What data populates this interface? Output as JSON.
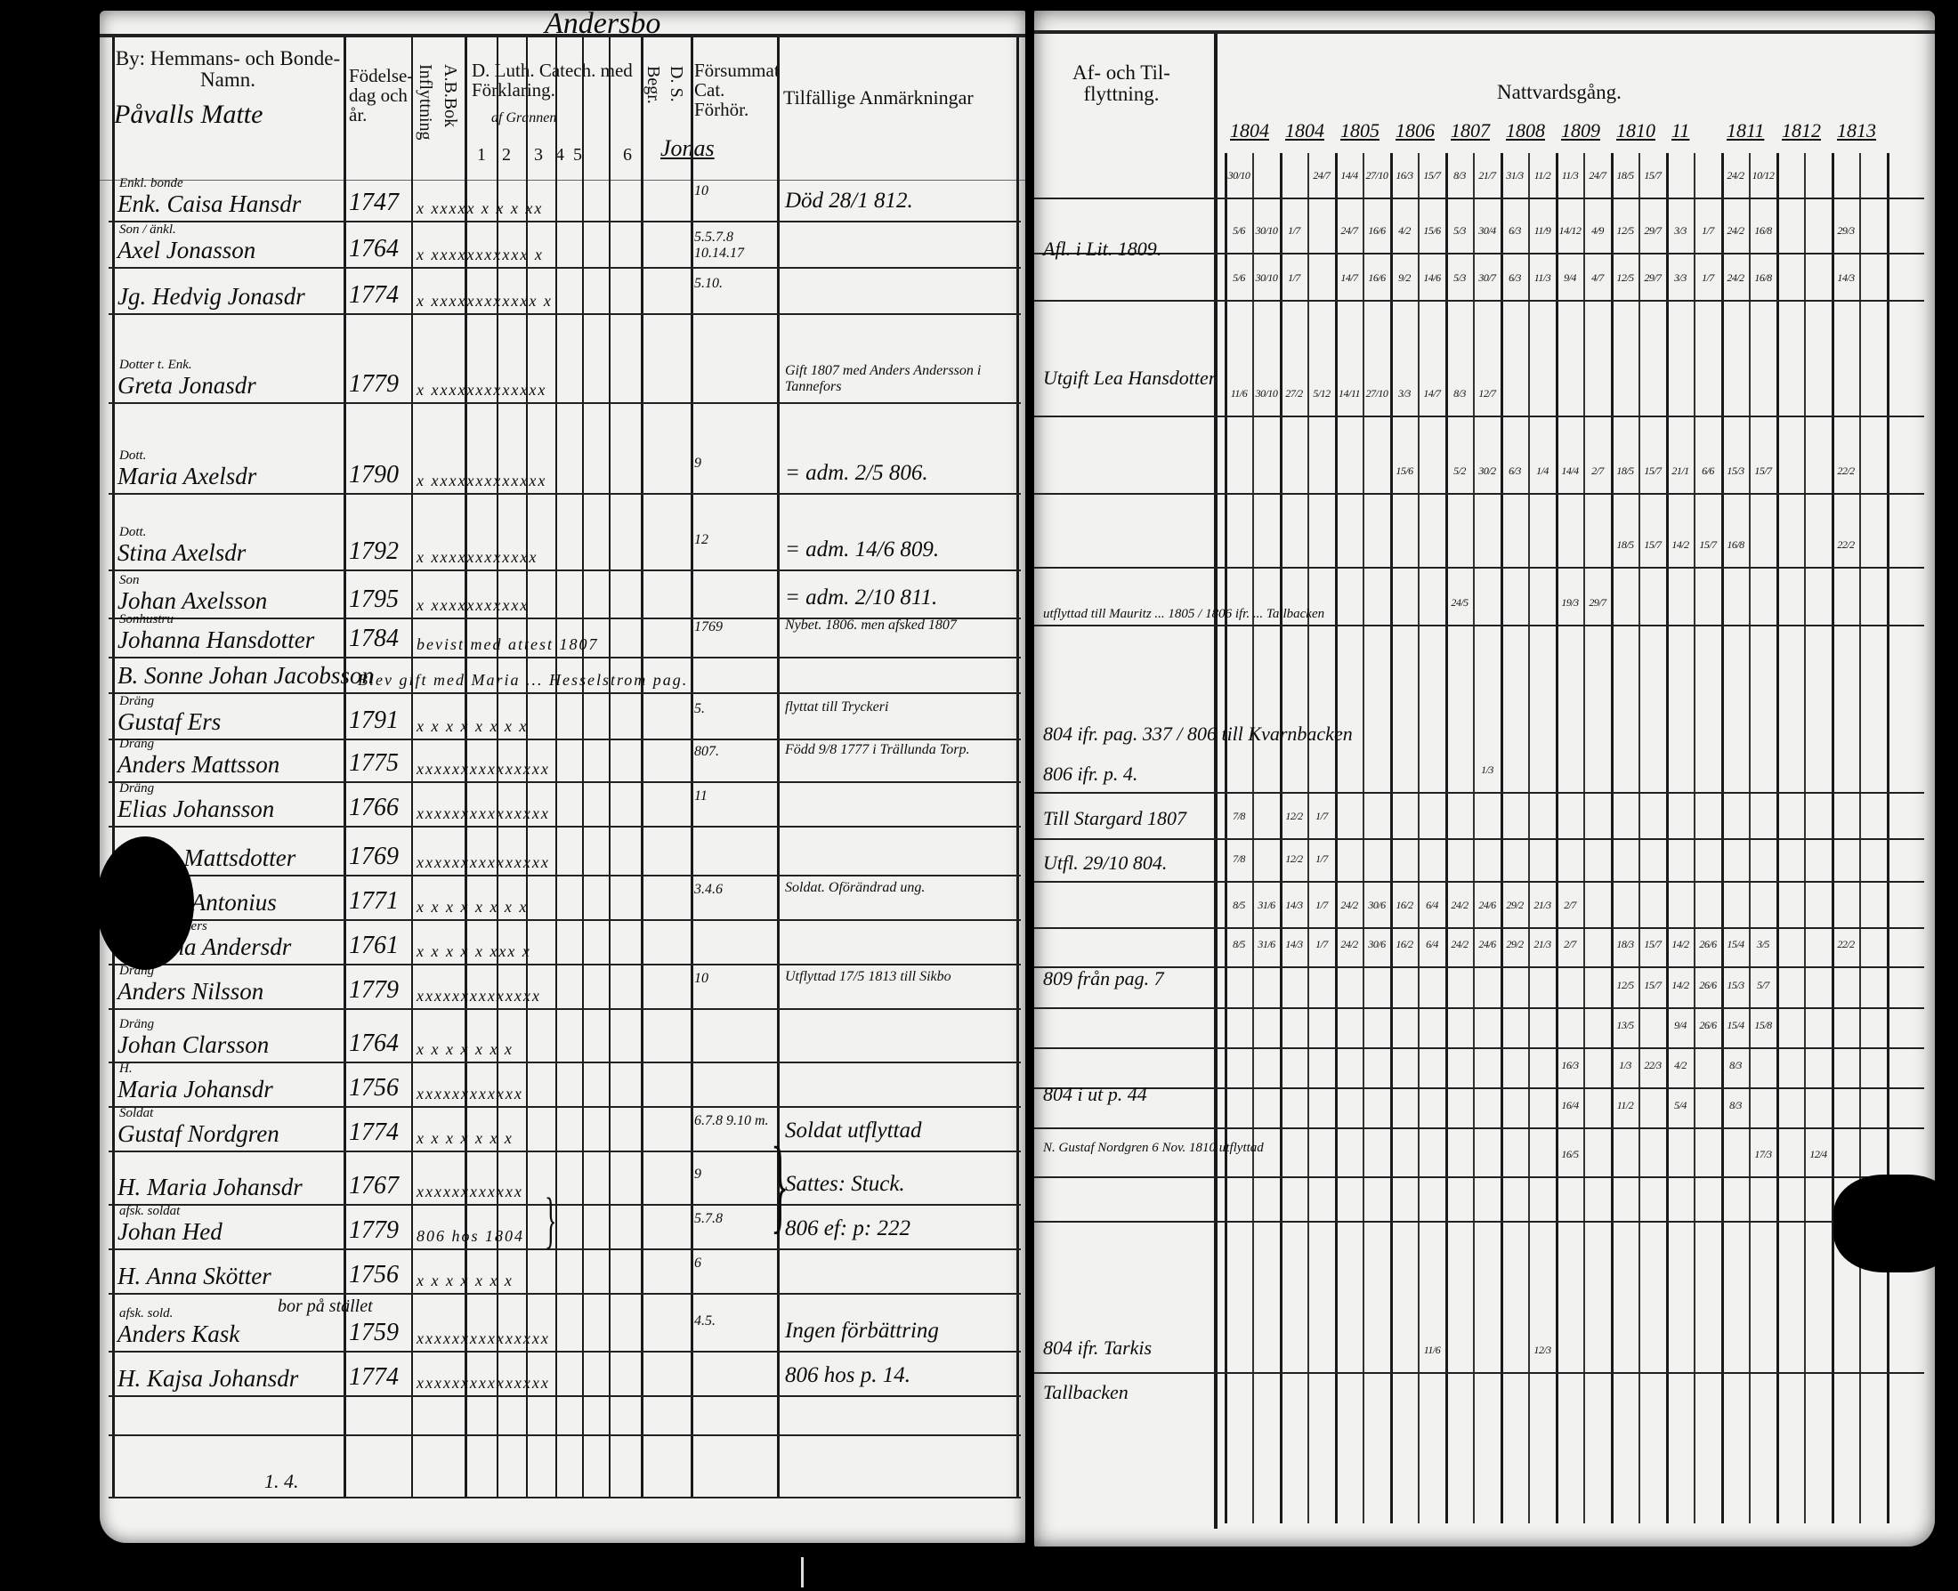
{
  "left_page": {
    "top_handwriting": "Andersbo",
    "headers": {
      "name": "By: Hemmans- och Bonde-Namn.",
      "name_handwritten": "Påvalls Matte",
      "birth": "Födelse-dag och år.",
      "inflyttning": "Inflyttning",
      "ab_bok": "A.B.Bok",
      "catechism": "D. Luth. Catech. med Förklaring.",
      "catechism_hand": "af Grannen",
      "catechism_numbers": [
        "1",
        "2",
        "3",
        "4",
        "5",
        "6"
      ],
      "begr": "Begr.",
      "ds": "D. S.",
      "forsummat": "Försummat Cat. Förhör.",
      "forsummat_hand": "Jonas",
      "remarks": "Tilfällige Anmärkningar"
    },
    "rows": [
      {
        "role": "Enkl. bonde",
        "name": "Enk. Caisa Hansdr",
        "year": "1747",
        "marks": "x xxxxx x x x xx",
        "forsummat": "10",
        "remark": "Död 28/1 812."
      },
      {
        "role": "Son / änkl.",
        "name": "Axel Jonasson",
        "year": "1764",
        "marks": "x xxxxxxxxxxx x",
        "forsummat": "5.5.7.8 10.14.17",
        "remark": ""
      },
      {
        "role": "",
        "name": "Jg. Hedvig Jonasdr",
        "year": "1774",
        "marks": "x xxxxxxxxxxxx x",
        "forsummat": "5.10.",
        "remark": ""
      },
      {
        "role": "Dotter t. Enk.",
        "name": "Greta Jonasdr",
        "year": "1779",
        "marks": "x xxxxxxxxxxxxx",
        "forsummat": "",
        "remark": "Gift 1807 med Anders Andersson i Tannefors"
      },
      {
        "role": "Dott.",
        "name": "Maria Axelsdr",
        "year": "1790",
        "marks": "x xxxxxxxxxxxxx",
        "forsummat": "9",
        "remark": "= adm. 2/5 806."
      },
      {
        "role": "Dott.",
        "name": "Stina Axelsdr",
        "year": "1792",
        "marks": "x xxxxxxxxxxxx",
        "forsummat": "12",
        "remark": "= adm. 14/6 809."
      },
      {
        "role": "Son",
        "name": "Johan Axelsson",
        "year": "1795",
        "marks": "x xxxxxxxxxxx",
        "forsummat": "",
        "remark": "= adm. 2/10 811."
      },
      {
        "role": "Sonhustru",
        "name": "Johanna Hansdotter",
        "year": "1784",
        "marks": "bevist med attest 1807",
        "forsummat": "1769",
        "remark": "Nybet. 1806. men afsked 1807"
      },
      {
        "role": "",
        "name": "B. Sonne Johan Jacobsson",
        "year": "",
        "marks": "Blev gift med Maria ... Hesselstrom pag.",
        "forsummat": "",
        "remark": ""
      },
      {
        "role": "Dräng",
        "name": "Gustaf Ers",
        "year": "1791",
        "marks": "x x x x x x x x",
        "forsummat": "5.",
        "remark": "flyttat till Tryckeri"
      },
      {
        "role": "Dräng",
        "name": "Anders Mattsson",
        "year": "1775",
        "marks": "xxxxxxxxxxxxxxx",
        "forsummat": "807.",
        "remark": "Född 9/8 1777 i Trällunda Torp."
      },
      {
        "role": "Dräng",
        "name": "Elias Johansson",
        "year": "1766",
        "marks": "xxxxxxxxxxxxxxx",
        "forsummat": "11",
        "remark": ""
      },
      {
        "role": "",
        "name": "Maria Mattsdotter",
        "year": "1769",
        "marks": "xxxxxxxxxxxxxxx",
        "forsummat": "",
        "remark": ""
      },
      {
        "role": "Dräng",
        "name": "Anders Antonius",
        "year": "1771",
        "marks": "x x x x x x x x",
        "forsummat": "3.4.6",
        "remark": "Soldat. Oförändrad ung."
      },
      {
        "role": "Piga hos Anders",
        "name": "H. Stina Andersdr",
        "year": "1761",
        "marks": "x x x x x xxx x",
        "forsummat": "",
        "remark": ""
      },
      {
        "role": "Dräng",
        "name": "Anders Nilsson",
        "year": "1779",
        "marks": "xxxxxxxxxxxxxx",
        "forsummat": "10",
        "remark": "Utflyttad 17/5 1813 till Sikbo"
      },
      {
        "role": "Dräng",
        "name": "Johan Clarsson",
        "year": "1764",
        "marks": "x x x x x x x",
        "forsummat": "",
        "remark": ""
      },
      {
        "role": "H.",
        "name": "Maria Johansdr",
        "year": "1756",
        "marks": "xxxxxxxxxxxx",
        "forsummat": "",
        "remark": ""
      },
      {
        "role": "Soldat",
        "name": "Gustaf Nordgren",
        "year": "1774",
        "marks": "x x x x x x x",
        "forsummat": "6.7.8 9.10 m.",
        "remark": "Soldat utflyttad"
      },
      {
        "role": "",
        "name": "H. Maria Johansdr",
        "year": "1767",
        "marks": "xxxxxxxxxxxx",
        "forsummat": "9",
        "remark": "Sattes: Stuck."
      },
      {
        "role": "afsk. soldat",
        "name": "Johan Hed",
        "year": "1779",
        "marks": "806 hos 1804",
        "forsummat": "5.7.8",
        "remark": "806 ef: p: 222"
      },
      {
        "role": "",
        "name": "H. Anna Skötter",
        "year": "1756",
        "marks": "x x x x x x x",
        "forsummat": "6",
        "remark": ""
      },
      {
        "role": "afsk. sold.",
        "name": "Anders Kask",
        "year": "1759",
        "marks": "xxxxxxxxxxxxxxx",
        "forsummat": "4.5.",
        "remark": "Ingen förbättring"
      },
      {
        "role": "",
        "name": "H. Kajsa Johansdr",
        "year": "1774",
        "marks": "xxxxxxxxxxxxxxx",
        "forsummat": "",
        "remark": "806 hos p. 14."
      }
    ],
    "bracket_note": "bor på stället",
    "bottom_note": "1. 4."
  },
  "right_page": {
    "headers": {
      "moving": "Af- och Til-flyttning.",
      "communion": "Nattvardsgång.",
      "years": [
        "1804",
        "1804",
        "1805",
        "1806",
        "1807",
        "1808",
        "1809",
        "1810",
        "11",
        "1811",
        "1812",
        "1813"
      ]
    },
    "moving_notes": [
      "Afl. i Lit. 1809.",
      "Utgift Lea Hansdotter",
      "utflyttad till Mauritz ... 1805 / 1806 ifr. ... Tallbacken",
      "804 ifr. pag. 337 / 806 till Kvarnbacken",
      "806 ifr. p. 4.",
      "Till Stargard 1807",
      "Utfl. 29/10 804.",
      "809 från pag. 7",
      "804 i ut p. 44",
      "N. Gustaf Nordgren 6 Nov. 1810 utflyttad",
      "804 ifr. Tarkis",
      "Tallbacken"
    ],
    "communion_rows": [
      [
        "30/10",
        "",
        "",
        "24/7",
        "14/4",
        "27/10",
        "16/3",
        "15/7",
        "8/3",
        "21/7",
        "31/3",
        "11/2",
        "11/3",
        "24/7",
        "18/5",
        "15/7",
        "",
        "",
        "24/2",
        "10/12",
        "",
        "",
        "",
        ""
      ],
      [
        "5/6",
        "30/10",
        "1/7",
        "",
        "24/7",
        "16/6",
        "4/2",
        "15/6",
        "5/3",
        "30/4",
        "6/3",
        "11/9",
        "14/12",
        "4/9",
        "12/5",
        "29/7",
        "3/3",
        "1/7",
        "24/2",
        "16/8",
        "",
        "",
        "29/3",
        ""
      ],
      [
        "5/6",
        "30/10",
        "1/7",
        "",
        "14/7",
        "16/6",
        "9/2",
        "14/6",
        "5/3",
        "30/7",
        "6/3",
        "11/3",
        "9/4",
        "4/7",
        "12/5",
        "29/7",
        "3/3",
        "1/7",
        "24/2",
        "16/8",
        "",
        "",
        "14/3",
        ""
      ],
      [
        "11/6",
        "30/10",
        "27/2",
        "5/12",
        "14/11",
        "27/10",
        "3/3",
        "14/7",
        "8/3",
        "12/7",
        "",
        "",
        "",
        "",
        "",
        "",
        "",
        "",
        "",
        "",
        "",
        "",
        "",
        ""
      ],
      [
        "",
        "",
        "",
        "",
        "",
        "",
        "15/6",
        "",
        "5/2",
        "30/2",
        "6/3",
        "1/4",
        "14/4",
        "2/7",
        "18/5",
        "15/7",
        "21/1",
        "6/6",
        "15/3",
        "15/7",
        "",
        "",
        "22/2",
        ""
      ],
      [
        "",
        "",
        "",
        "",
        "",
        "",
        "",
        "",
        "",
        "",
        "",
        "",
        "",
        "",
        "18/5",
        "15/7",
        "14/2",
        "15/7",
        "16/8",
        "",
        "",
        "",
        "22/2",
        ""
      ],
      [
        "",
        "",
        "",
        "",
        "",
        "",
        "",
        "",
        "24/5",
        "",
        "",
        "",
        "19/3",
        "29/7",
        "",
        "",
        "",
        "",
        "",
        "",
        "",
        "",
        "",
        ""
      ],
      [
        "",
        "",
        "",
        "",
        "",
        "",
        "",
        "",
        "",
        "1/3",
        "",
        "",
        "",
        "",
        "",
        "",
        "",
        "",
        "",
        "",
        "",
        "",
        "",
        ""
      ],
      [
        "7/8",
        "",
        "12/2",
        "1/7",
        "",
        "",
        "",
        "",
        "",
        "",
        "",
        "",
        "",
        "",
        "",
        "",
        "",
        "",
        "",
        "",
        "",
        "",
        "",
        ""
      ],
      [
        "7/8",
        "",
        "12/2",
        "1/7",
        "",
        "",
        "",
        "",
        "",
        "",
        "",
        "",
        "",
        "",
        "",
        "",
        "",
        "",
        "",
        "",
        "",
        "",
        "",
        ""
      ],
      [
        "8/5",
        "31/6",
        "14/3",
        "1/7",
        "24/2",
        "30/6",
        "16/2",
        "6/4",
        "24/2",
        "24/6",
        "29/2",
        "21/3",
        "2/7",
        "",
        "",
        "",
        "",
        "",
        "",
        "",
        "",
        "",
        "",
        ""
      ],
      [
        "8/5",
        "31/6",
        "14/3",
        "1/7",
        "24/2",
        "30/6",
        "16/2",
        "6/4",
        "24/2",
        "24/6",
        "29/2",
        "21/3",
        "2/7",
        "",
        "18/3",
        "15/7",
        "14/2",
        "26/6",
        "15/4",
        "3/5",
        "",
        "",
        "22/2",
        ""
      ],
      [
        "",
        "",
        "",
        "",
        "",
        "",
        "",
        "",
        "",
        "",
        "",
        "",
        "",
        "",
        "12/5",
        "15/7",
        "14/2",
        "26/6",
        "15/3",
        "5/7",
        "",
        "",
        "",
        ""
      ],
      [
        "",
        "",
        "",
        "",
        "",
        "",
        "",
        "",
        "",
        "",
        "",
        "",
        "",
        "",
        "13/5",
        "",
        "9/4",
        "26/6",
        "15/4",
        "15/8",
        "",
        "",
        "",
        ""
      ],
      [
        "",
        "",
        "",
        "",
        "",
        "",
        "",
        "",
        "",
        "",
        "",
        "",
        "16/3",
        "",
        "1/3",
        "22/3",
        "4/2",
        "",
        "8/3",
        "",
        "",
        "",
        "",
        ""
      ],
      [
        "",
        "",
        "",
        "",
        "",
        "",
        "",
        "",
        "",
        "",
        "",
        "",
        "16/4",
        "",
        "11/2",
        "",
        "5/4",
        "",
        "8/3",
        "",
        "",
        "",
        "",
        ""
      ],
      [
        "",
        "",
        "",
        "",
        "",
        "",
        "",
        "",
        "",
        "",
        "",
        "",
        "16/5",
        "",
        "",
        "",
        "",
        "",
        "",
        "17/3",
        "",
        "12/4",
        "",
        ""
      ],
      [
        "",
        "",
        "",
        "",
        "",
        "",
        "",
        "",
        "",
        "",
        "",
        "",
        "",
        "",
        "",
        "",
        "",
        "",
        "",
        "",
        "",
        "",
        "",
        ""
      ],
      [
        "",
        "",
        "",
        "",
        "",
        "",
        "",
        "11/6",
        "",
        "",
        "",
        "12/3",
        "",
        "",
        "",
        "",
        "",
        "",
        "",
        "",
        "",
        "",
        "",
        ""
      ]
    ]
  }
}
